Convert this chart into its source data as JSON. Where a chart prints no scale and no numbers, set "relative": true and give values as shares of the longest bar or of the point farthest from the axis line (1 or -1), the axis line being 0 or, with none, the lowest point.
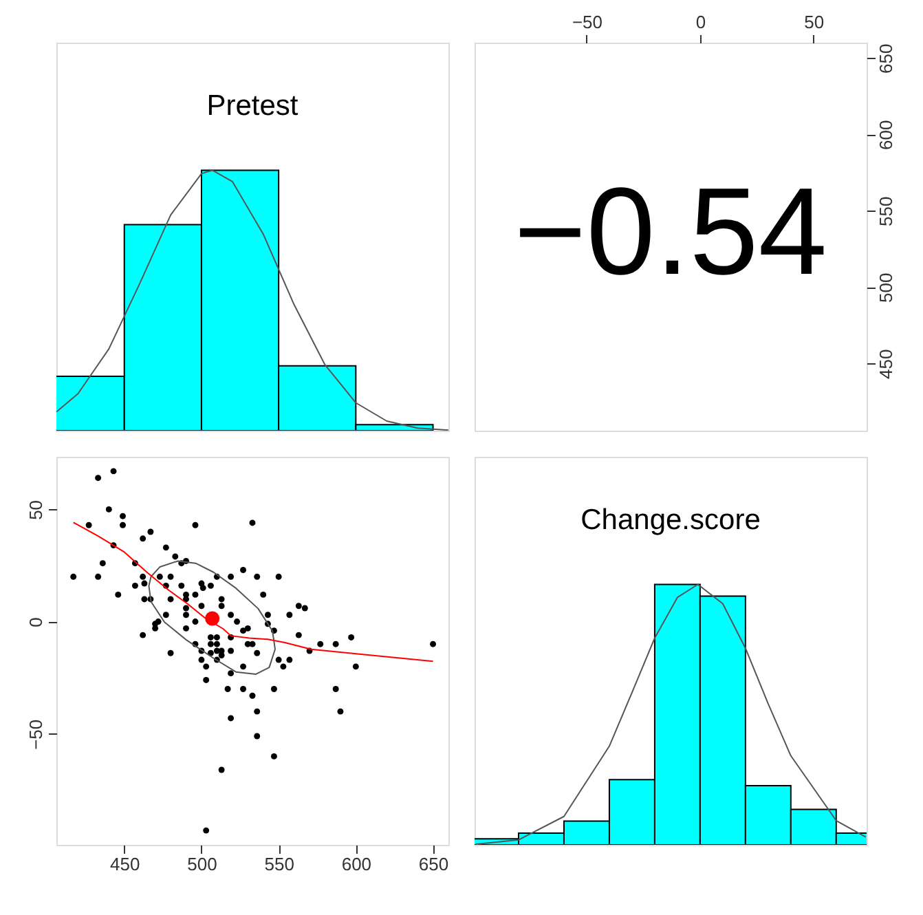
{
  "chart_data": [
    {
      "type": "histogram",
      "title": "Pretest",
      "bins": [
        400,
        450,
        500,
        550,
        600,
        650
      ],
      "values": [
        0.209,
        0.791,
        1,
        0.249,
        0.023
      ],
      "relative": true,
      "color": "#00ffff",
      "xlim": [
        406,
        660
      ],
      "tick_labels": false,
      "grid": false,
      "series": [
        {
          "type": "line",
          "color": "#555555",
          "x": [
            406,
            420,
            440,
            460,
            480,
            500,
            507,
            520,
            540,
            560,
            580,
            600,
            620,
            640,
            660
          ],
          "values": [
            0.072,
            0.142,
            0.314,
            0.565,
            0.828,
            0.987,
            1,
            0.957,
            0.755,
            0.484,
            0.253,
            0.107,
            0.037,
            0.01,
            0.002
          ]
        }
      ]
    },
    {
      "type": "scatter",
      "annotations": [
        "−0.54"
      ],
      "xlim": [
        -99.4,
        73.4
      ],
      "xticks": [
        -50,
        0,
        50
      ],
      "ylim": [
        406,
        660
      ],
      "yticks": [
        450,
        500,
        550,
        600,
        650
      ],
      "grid": false
    },
    {
      "type": "scatter",
      "xlim": [
        406,
        660
      ],
      "xticks": [
        450,
        500,
        550,
        600,
        650
      ],
      "ylim": [
        -99.4,
        73.4
      ],
      "yticks": [
        -50,
        0,
        50
      ],
      "marker": "circle",
      "grid": false,
      "series": [
        {
          "color": "#000000",
          "x": [
            417,
            433,
            443,
            427,
            440,
            449,
            449,
            443,
            436,
            433,
            446,
            457,
            462,
            467,
            457,
            462,
            463,
            463,
            467,
            462,
            470,
            472,
            470,
            473,
            477,
            477,
            480,
            480,
            477,
            480,
            483,
            487,
            490,
            487,
            490,
            490,
            490,
            490,
            490,
            496,
            496,
            496,
            496,
            500,
            501,
            500,
            500,
            500,
            503,
            503,
            503,
            506,
            510,
            506,
            506,
            506,
            510,
            510,
            510,
            510,
            513,
            513,
            513,
            513,
            513,
            517,
            519,
            519,
            519,
            519,
            519,
            519,
            523,
            527,
            527,
            527,
            527,
            530,
            530,
            533,
            533,
            533,
            536,
            536,
            536,
            536,
            540,
            543,
            543,
            547,
            547,
            547,
            550,
            550,
            553,
            557,
            557,
            563,
            563,
            567,
            570,
            577,
            587,
            587,
            590,
            597,
            600,
            650
          ],
          "values": [
            20,
            64,
            67,
            43,
            50,
            47,
            43,
            34,
            26,
            20,
            12,
            26,
            37,
            40,
            16,
            20,
            17,
            10,
            10,
            -6,
            -1,
            0,
            -3,
            20,
            33,
            16,
            20,
            10,
            3,
            -14,
            29,
            26,
            27,
            16,
            12,
            10,
            6,
            3,
            -3,
            43,
            12,
            0,
            -10,
            17,
            15,
            7,
            -13,
            -17,
            -20,
            -26,
            -93,
            16,
            20,
            -7,
            -10,
            -14,
            -7,
            -10,
            -13,
            -17,
            10,
            7,
            -13,
            -15,
            -66,
            -30,
            20,
            3,
            -7,
            -13,
            -23,
            -43,
            0,
            23,
            -4,
            -20,
            -30,
            -3,
            -10,
            44,
            -10,
            -33,
            20,
            -14,
            -40,
            -51,
            12,
            3,
            -1,
            -4,
            -30,
            -60,
            20,
            -17,
            -20,
            3,
            -17,
            7,
            -6,
            6,
            -13,
            -10,
            -10,
            -30,
            -40,
            -7,
            -20,
            -10
          ]
        },
        {
          "type": "scatter",
          "color": "#ff0000",
          "x": [
            507
          ],
          "values": [
            1.4
          ]
        },
        {
          "type": "line",
          "marker": "none",
          "color": "#ff0000",
          "x": [
            417,
            433,
            450,
            465,
            479,
            491,
            502,
            514,
            519,
            531,
            543,
            554,
            571,
            600,
            650
          ],
          "values": [
            44.2,
            38.1,
            31.0,
            21.8,
            13.9,
            7.9,
            1.8,
            -3.2,
            -6.3,
            -7.3,
            -7.9,
            -9.3,
            -12.3,
            -14.3,
            -17.7
          ]
        }
      ]
    },
    {
      "type": "histogram",
      "title": "Change.score",
      "bins": [
        -100,
        -80,
        -60,
        -40,
        -20,
        0,
        20,
        40,
        60,
        80
      ],
      "values": [
        0.023,
        0.045,
        0.091,
        0.25,
        1,
        0.955,
        0.227,
        0.136,
        0.045
      ],
      "relative": true,
      "color": "#00ffff",
      "xlim": [
        -99.4,
        73.4
      ],
      "tick_labels": false,
      "grid": false,
      "series": [
        {
          "type": "line",
          "color": "#555555",
          "x": [
            -99,
            -80,
            -60,
            -40,
            -30,
            -20,
            -10,
            -1,
            10,
            20,
            30,
            40,
            60,
            73
          ],
          "values": [
            0.002,
            0.019,
            0.109,
            0.379,
            0.585,
            0.794,
            0.95,
            1,
            0.926,
            0.755,
            0.542,
            0.342,
            0.093,
            0.03
          ]
        }
      ]
    }
  ]
}
